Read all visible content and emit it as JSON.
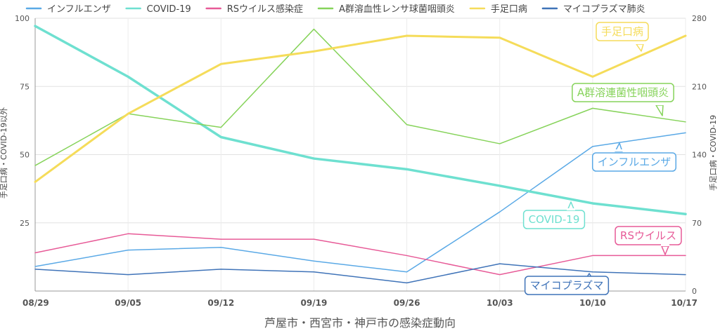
{
  "chart_data": {
    "type": "line",
    "xlabel": "芦屋市・西宮市・神戸市の感染症動向",
    "ylabel_left": "手足口病・COVID-19以外",
    "ylabel_right": "手足口病・COVID-19",
    "categories": [
      "08/29",
      "09/05",
      "09/12",
      "09/19",
      "09/26",
      "10/03",
      "10/10",
      "10/17"
    ],
    "ylim_left": [
      0,
      100
    ],
    "ylim_right": [
      0,
      280
    ],
    "yticks_left": [
      25,
      50,
      75,
      100
    ],
    "yticks_right": [
      0,
      70,
      140,
      210,
      280
    ],
    "grid": true,
    "legend_position": "top",
    "series": [
      {
        "name": "インフルエンザ",
        "axis": "left",
        "color": "#5aa9e6",
        "width": 1.5,
        "values": [
          9,
          15,
          16,
          11,
          7,
          29,
          53,
          58
        ]
      },
      {
        "name": "COVID-19",
        "axis": "right",
        "color": "#6ee0d0",
        "width": 3.5,
        "values": [
          272,
          220,
          158,
          136,
          125,
          108,
          90,
          79
        ]
      },
      {
        "name": "RSウイルス感染症",
        "axis": "left",
        "color": "#e75a97",
        "width": 1.5,
        "values": [
          14,
          21,
          19,
          19,
          13,
          6,
          13,
          13
        ]
      },
      {
        "name": "A群溶血性レンサ球菌咽頭炎",
        "axis": "left",
        "color": "#86d35a",
        "width": 1.5,
        "values": [
          46,
          65,
          60,
          96,
          61,
          54,
          67,
          62
        ]
      },
      {
        "name": "手足口病",
        "axis": "right",
        "color": "#f5dc5a",
        "width": 3,
        "values": [
          112,
          182,
          233,
          246,
          262,
          260,
          220,
          262
        ]
      },
      {
        "name": "マイコプラズマ肺炎",
        "axis": "left",
        "color": "#3f73b8",
        "width": 1.5,
        "values": [
          8,
          6,
          8,
          7,
          3,
          10,
          7,
          6
        ]
      }
    ],
    "annotations": [
      {
        "label": "手足口病",
        "series": 4
      },
      {
        "label": "A群溶連菌性咽頭炎",
        "series": 3
      },
      {
        "label": "インフルエンザ",
        "series": 0
      },
      {
        "label": "COVID-19",
        "series": 1
      },
      {
        "label": "RSウイルス",
        "series": 2
      },
      {
        "label": "マイコプラズマ",
        "series": 5
      }
    ]
  }
}
